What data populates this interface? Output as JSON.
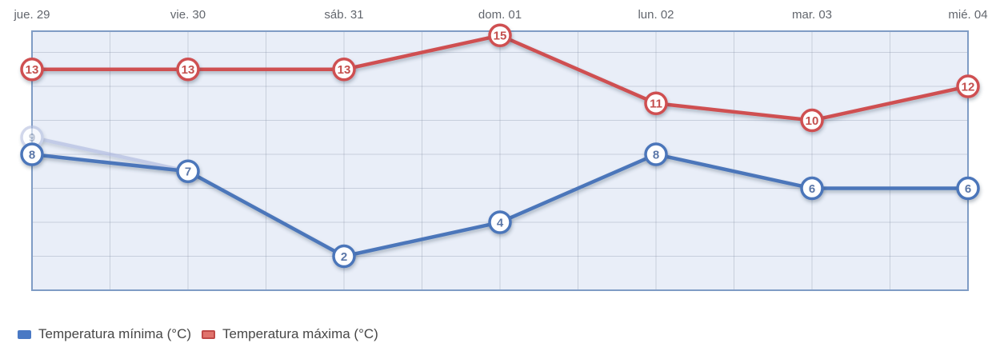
{
  "chart_data": {
    "type": "line",
    "categories": [
      "jue. 29",
      "vie. 30",
      "sáb. 31",
      "dom. 01",
      "lun. 02",
      "mar. 03",
      "mié. 04"
    ],
    "series": [
      {
        "name": "Temperatura mínima (°C)",
        "values": [
          8,
          7,
          2,
          4,
          8,
          6,
          6
        ],
        "line_color": "#4b76ba",
        "marker_fill": "#ffffff",
        "label_color": "#5b77a8",
        "legend_fill": "#4a79c4",
        "legend_border": "#4a79c4"
      },
      {
        "name": "Temperatura máxima (°C)",
        "values": [
          13,
          13,
          13,
          15,
          11,
          10,
          12
        ],
        "line_color": "#cf5051",
        "marker_fill": "#ffffff",
        "label_color": "#c4504e",
        "legend_fill": "#e0736c",
        "legend_border": "#c04a48"
      }
    ],
    "ghost_segment": {
      "start_index": 0,
      "values": [
        9,
        7
      ],
      "labeled_value": "9",
      "line_color": "#a9b5dc",
      "marker_border": "#b3bedf",
      "marker_fill": "#fdfeff",
      "label_color": "#9aa4ba",
      "opacity": 0.6
    },
    "ylim": [
      0,
      15.25
    ],
    "y_gridline_step": 2,
    "x_gridlines_per_interval": 2,
    "axis_labels_position": "top",
    "legend_position": "bottom",
    "plot_bg": "#e9eef8",
    "plot_border": "#7f9cc5",
    "grid_color": "rgba(124,134,156,0.30)",
    "day_label_color": "#62666d",
    "legend_text_color": "#474747"
  }
}
